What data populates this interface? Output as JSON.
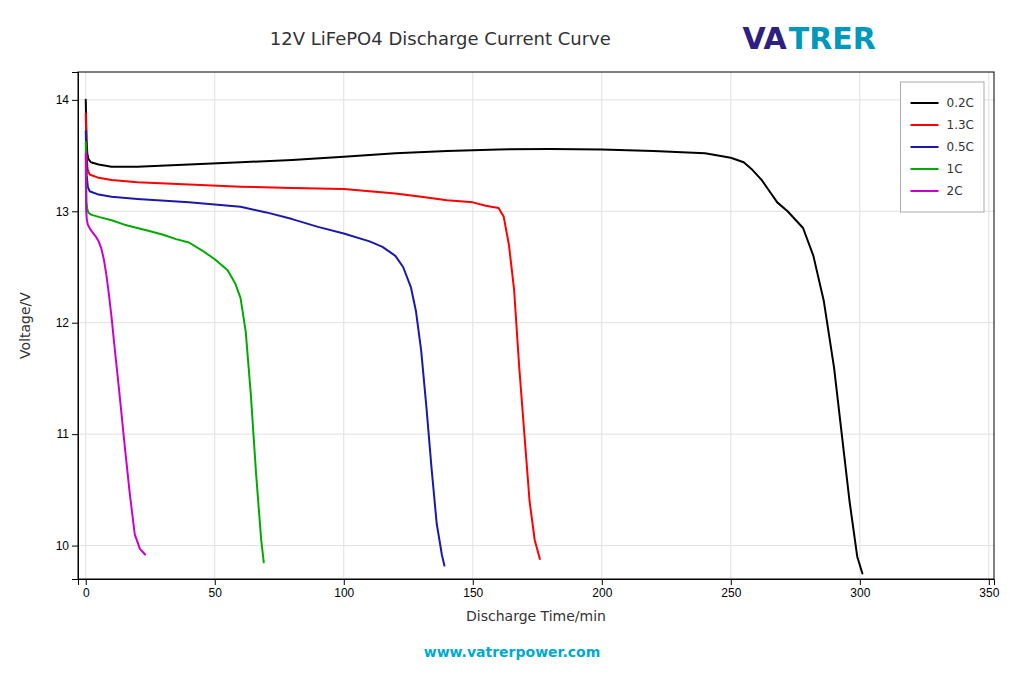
{
  "chart_data": {
    "type": "line",
    "title": "12V LiFePO4 Discharge Current Curve",
    "x_label": "Discharge Time/min",
    "y_label": "Voltage/V",
    "xlim": [
      -3,
      352
    ],
    "ylim": [
      9.7,
      14.25
    ],
    "xticks": [
      0,
      50,
      100,
      150,
      200,
      250,
      300,
      350
    ],
    "yticks": [
      10,
      11,
      12,
      13,
      14
    ],
    "grid": true,
    "legend": "upper right",
    "annotations": [
      {
        "text": "VA",
        "color": "#2d2080"
      },
      {
        "text": "TRER",
        "color": "#0099bb"
      },
      {
        "text": "www.vatrerpower.com",
        "color": "#00aacc"
      }
    ],
    "series": [
      {
        "name": "0.2C",
        "color": "#000000",
        "x": [
          0,
          0.3,
          0.6,
          1.0,
          2,
          5,
          10,
          20,
          40,
          60,
          80,
          100,
          120,
          140,
          160,
          180,
          200,
          220,
          240,
          250,
          255,
          258,
          262,
          265,
          268,
          272,
          278,
          282,
          286,
          290,
          293,
          296,
          299,
          301
        ],
        "values": [
          14.0,
          13.65,
          13.52,
          13.47,
          13.44,
          13.42,
          13.4,
          13.4,
          13.42,
          13.44,
          13.46,
          13.49,
          13.52,
          13.54,
          13.555,
          13.56,
          13.555,
          13.54,
          13.52,
          13.48,
          13.44,
          13.38,
          13.28,
          13.18,
          13.08,
          13.0,
          12.85,
          12.6,
          12.2,
          11.6,
          11.0,
          10.4,
          9.9,
          9.75
        ]
      },
      {
        "name": "1.3C",
        "color": "#ff0000",
        "x": [
          0,
          0.3,
          0.7,
          1.5,
          5,
          10,
          20,
          40,
          60,
          80,
          100,
          110,
          120,
          130,
          140,
          150,
          155,
          160,
          162,
          164,
          166,
          168,
          170,
          172,
          174,
          176
        ],
        "values": [
          13.88,
          13.52,
          13.38,
          13.33,
          13.3,
          13.28,
          13.26,
          13.24,
          13.22,
          13.21,
          13.2,
          13.18,
          13.16,
          13.13,
          13.1,
          13.08,
          13.05,
          13.03,
          12.95,
          12.7,
          12.3,
          11.6,
          11.0,
          10.4,
          10.05,
          9.88
        ]
      },
      {
        "name": "0.5C",
        "color": "#1a1aaa",
        "x": [
          0,
          0.4,
          0.8,
          1.5,
          5,
          10,
          20,
          40,
          60,
          70,
          80,
          90,
          100,
          110,
          115,
          120,
          123,
          126,
          128,
          130,
          132,
          134,
          136,
          138,
          139
        ],
        "values": [
          13.72,
          13.32,
          13.22,
          13.18,
          13.15,
          13.13,
          13.11,
          13.08,
          13.04,
          12.99,
          12.93,
          12.86,
          12.8,
          12.73,
          12.68,
          12.6,
          12.5,
          12.32,
          12.1,
          11.75,
          11.25,
          10.7,
          10.2,
          9.92,
          9.82
        ]
      },
      {
        "name": "1C",
        "color": "#00aa00",
        "x": [
          0,
          0.3,
          0.6,
          1.0,
          2,
          5,
          10,
          15,
          20,
          25,
          30,
          35,
          40,
          45,
          50,
          55,
          58,
          60,
          62,
          64,
          66,
          68,
          69
        ],
        "values": [
          13.62,
          13.08,
          13.02,
          12.99,
          12.97,
          12.95,
          12.92,
          12.88,
          12.85,
          12.82,
          12.79,
          12.75,
          12.72,
          12.65,
          12.57,
          12.47,
          12.35,
          12.22,
          11.92,
          11.35,
          10.65,
          10.05,
          9.85
        ]
      },
      {
        "name": "2C",
        "color": "#cc00cc",
        "x": [
          0,
          0.15,
          0.4,
          0.8,
          1.5,
          2,
          3,
          4,
          5,
          6,
          7,
          8,
          9,
          10,
          11,
          13,
          15,
          17,
          19,
          21,
          23
        ],
        "values": [
          13.52,
          13.02,
          12.93,
          12.88,
          12.85,
          12.83,
          12.8,
          12.77,
          12.73,
          12.67,
          12.57,
          12.43,
          12.25,
          12.05,
          11.82,
          11.38,
          10.92,
          10.48,
          10.1,
          9.97,
          9.92
        ]
      }
    ]
  }
}
